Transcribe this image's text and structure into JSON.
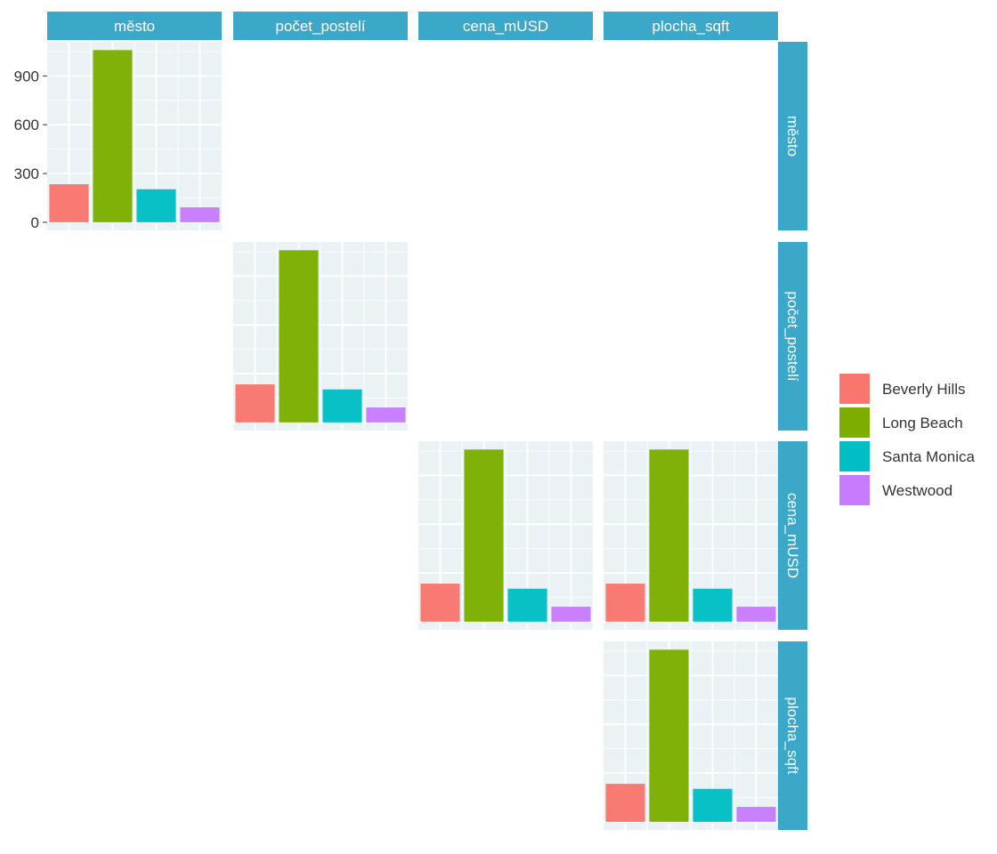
{
  "chart_data": {
    "type": "bar",
    "layout": "pairs-matrix",
    "variables": [
      "město",
      "počet_postelí",
      "cena_mUSD",
      "plocha_sqft"
    ],
    "categories": [
      "Beverly Hills",
      "Long Beach",
      "Santa Monica",
      "Westwood"
    ],
    "colors": {
      "Beverly Hills": "#F8766D",
      "Long Beach": "#7CAE00",
      "Santa Monica": "#00BFC4",
      "Westwood": "#C77CFF"
    },
    "strip_color": "#3BA7C9",
    "panel_background": "#EBF2F6",
    "y_ticks": [
      0,
      300,
      600,
      900
    ],
    "grid": true,
    "legend_position": "right",
    "panels": [
      {
        "row": "město",
        "col": "město",
        "values": [
          234,
          1059,
          203,
          92
        ],
        "ylim": [
          -50,
          1110
        ],
        "show_y_axis": true
      },
      {
        "row": "počet_postelí",
        "col": "počet_postelí",
        "values": [
          234,
          1059,
          203,
          92
        ],
        "ylim": [
          -50,
          1110
        ]
      },
      {
        "row": "cena_mUSD",
        "col": "cena_mUSD",
        "values": [
          234,
          1059,
          203,
          92
        ],
        "ylim": [
          -50,
          1110
        ]
      },
      {
        "row": "cena_mUSD",
        "col": "plocha_sqft",
        "values": [
          234,
          1059,
          203,
          92
        ],
        "ylim": [
          -50,
          1110
        ]
      },
      {
        "row": "plocha_sqft",
        "col": "plocha_sqft",
        "values": [
          234,
          1059,
          203,
          92
        ],
        "ylim": [
          -50,
          1110
        ]
      }
    ]
  }
}
